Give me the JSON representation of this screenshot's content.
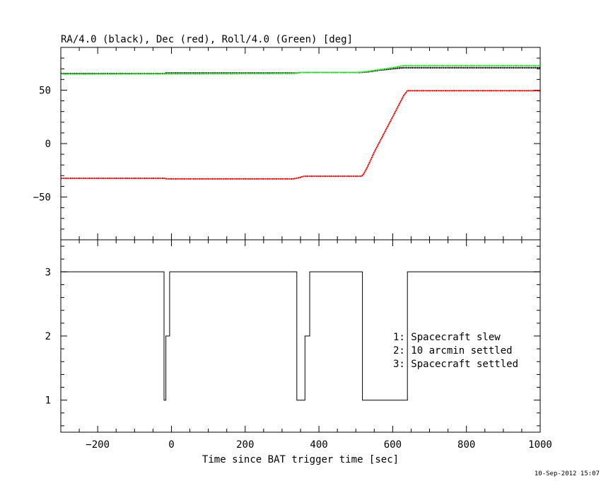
{
  "chart_data": [
    {
      "type": "line",
      "title": "RA/4.0 (black), Dec (red), Roll/4.0 (Green) [deg]",
      "xlim": [
        -300,
        1000
      ],
      "ylim": [
        -90,
        90
      ],
      "yticks": [
        -50,
        0,
        50
      ],
      "grid": false,
      "series": [
        {
          "name": "RA/4.0",
          "color": "#000000",
          "x": [
            -300,
            -20,
            -15,
            340,
            350,
            380,
            510,
            530,
            560,
            600,
            630,
            645,
            1000
          ],
          "values": [
            65.5,
            65.5,
            66,
            66,
            66.5,
            66.5,
            66.5,
            67,
            68.5,
            70,
            71,
            71,
            71
          ]
        },
        {
          "name": "Dec",
          "color": "#dd0000",
          "x": [
            -300,
            -20,
            -10,
            330,
            345,
            360,
            515,
            520,
            530,
            550,
            600,
            630,
            640,
            1000
          ],
          "values": [
            -32.5,
            -32.5,
            -33,
            -33,
            -32,
            -30.5,
            -30.5,
            -29,
            -23,
            -8,
            25,
            45,
            49.5,
            49.5
          ]
        },
        {
          "name": "Roll/4.0",
          "color": "#22dd22",
          "x": [
            -300,
            330,
            350,
            370,
            500,
            520,
            550,
            600,
            630,
            645,
            1000
          ],
          "values": [
            65,
            65.5,
            66.5,
            66.5,
            66.5,
            67,
            68.5,
            71,
            73,
            73,
            73
          ]
        }
      ]
    },
    {
      "type": "line",
      "xlabel": "Time since BAT trigger time [sec]",
      "xlim": [
        -300,
        1000
      ],
      "ylim": [
        0.5,
        3.5
      ],
      "xticks": [
        -200,
        0,
        200,
        400,
        600,
        800,
        1000
      ],
      "yticks": [
        1,
        2,
        3
      ],
      "grid": false,
      "series": [
        {
          "color": "#000000",
          "step": true,
          "x": [
            -300,
            -20,
            -20,
            -15,
            -15,
            -5,
            -5,
            340,
            340,
            362,
            362,
            375,
            375,
            518,
            518,
            640,
            640,
            1000
          ],
          "values": [
            3,
            3,
            1,
            1,
            2,
            2,
            3,
            3,
            1,
            1,
            2,
            2,
            3,
            3,
            1,
            1,
            3,
            3
          ]
        }
      ],
      "annotations": [
        "1: Spacecraft slew",
        "2: 10 arcmin settled",
        "3: Spacecraft settled"
      ]
    }
  ],
  "footer": {
    "timestamp": "10-Sep-2012 15:07"
  }
}
